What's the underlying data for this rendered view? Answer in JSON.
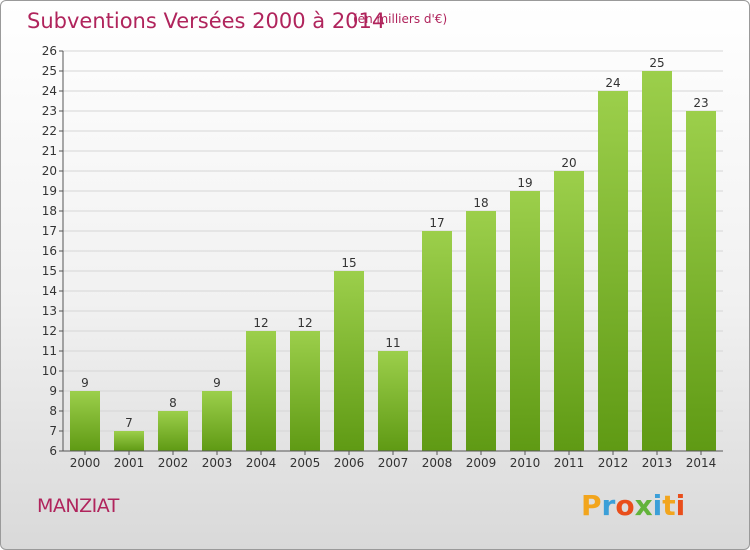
{
  "header": {
    "title": "Subventions Versées 2000 à 2014",
    "subtitle": "(en milliers d'€)"
  },
  "footer": {
    "commune": "MANZIAT",
    "logo": "Proxiti"
  },
  "colors": {
    "title": "#b0245c",
    "bar_light": "#9ccf4b",
    "bar_dark": "#5f9a14"
  },
  "chart_data": {
    "type": "bar",
    "title": "Subventions Versées 2000 à 2014",
    "subtitle": "(en milliers d'€)",
    "categories": [
      "2000",
      "2001",
      "2002",
      "2003",
      "2004",
      "2005",
      "2006",
      "2007",
      "2008",
      "2009",
      "2010",
      "2011",
      "2012",
      "2013",
      "2014"
    ],
    "values": [
      9,
      7,
      8,
      9,
      12,
      12,
      15,
      11,
      17,
      18,
      19,
      20,
      24,
      25,
      23
    ],
    "ylim": [
      6,
      26
    ],
    "yticks": [
      6,
      7,
      8,
      9,
      10,
      11,
      12,
      13,
      14,
      15,
      16,
      17,
      18,
      19,
      20,
      21,
      22,
      23,
      24,
      25,
      26
    ],
    "grid": true,
    "data_labels": true
  }
}
